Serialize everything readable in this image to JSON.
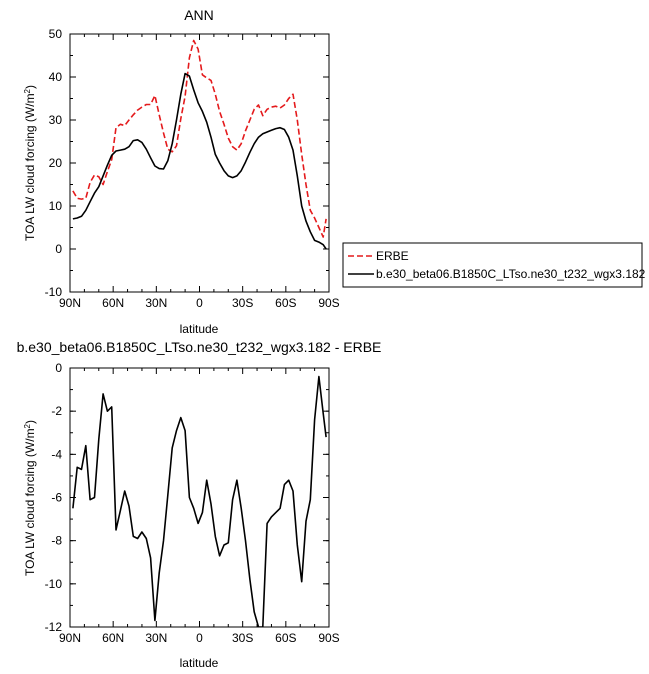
{
  "chart_data": [
    {
      "type": "line",
      "title": "ANN",
      "xlabel": "latitude",
      "ylabel": "TOA LW cloud forcing (W/m",
      "ylabel_sup": "2",
      "ylabel_close": ")",
      "xlim": [
        90,
        -90
      ],
      "ylim": [
        -10,
        50
      ],
      "x_ticks": [
        90,
        60,
        30,
        0,
        -30,
        -60,
        -90
      ],
      "x_tick_labels": [
        "90N",
        "60N",
        "30N",
        "0",
        "30S",
        "60S",
        "90S"
      ],
      "y_ticks": [
        -10,
        0,
        10,
        20,
        30,
        40,
        50
      ],
      "y_tick_labels": [
        "-10",
        "0",
        "10",
        "20",
        "30",
        "40",
        "50"
      ],
      "legend": "outside-right",
      "series": [
        {
          "name": "ERBE",
          "color": "#e41a1c",
          "dash": "dashed",
          "x": [
            88,
            85,
            82,
            79,
            76,
            73,
            70,
            67,
            64,
            61,
            58,
            55,
            52,
            49,
            46,
            43,
            40,
            37,
            34,
            31,
            28,
            25,
            22,
            19,
            16,
            13,
            10,
            7,
            4,
            1,
            -2,
            -5,
            -8,
            -11,
            -14,
            -17,
            -20,
            -23,
            -26,
            -29,
            -32,
            -35,
            -38,
            -41,
            -44,
            -47,
            -50,
            -53,
            -56,
            -59,
            -62,
            -65,
            -68,
            -71,
            -74,
            -77,
            -80,
            -83,
            -86,
            -88
          ],
          "values": [
            13.5,
            11.8,
            11.6,
            11.8,
            15.5,
            17.2,
            16.8,
            15.0,
            18.0,
            20.8,
            28.2,
            29.0,
            28.7,
            30.0,
            31.2,
            32.3,
            33.0,
            33.6,
            33.6,
            35.7,
            31.2,
            27.0,
            23.2,
            22.6,
            24.0,
            30.3,
            35.5,
            44.5,
            48.5,
            46.5,
            40.5,
            39.8,
            39.2,
            36.0,
            32.0,
            29.0,
            25.8,
            23.8,
            23.0,
            24.5,
            27.5,
            30.0,
            32.5,
            33.5,
            31.0,
            32.5,
            33.0,
            33.2,
            32.8,
            33.5,
            35.0,
            36.0,
            30.0,
            22.0,
            15.0,
            9.0,
            7.2,
            5.0,
            2.8,
            7.0
          ]
        },
        {
          "name": "b.e30_beta06.B1850C_LTso.ne30_t232_wgx3.182",
          "color": "#000000",
          "dash": "solid",
          "x": [
            88,
            85,
            82,
            79,
            76,
            73,
            70,
            67,
            64,
            61,
            58,
            55,
            52,
            49,
            46,
            43,
            40,
            37,
            34,
            31,
            28,
            25,
            22,
            19,
            16,
            13,
            10,
            7,
            4,
            1,
            -2,
            -5,
            -8,
            -11,
            -14,
            -17,
            -20,
            -23,
            -26,
            -29,
            -32,
            -35,
            -38,
            -41,
            -44,
            -47,
            -50,
            -53,
            -56,
            -59,
            -62,
            -65,
            -68,
            -71,
            -74,
            -77,
            -80,
            -83,
            -86,
            -88
          ],
          "values": [
            7.0,
            7.2,
            7.6,
            9.0,
            11.0,
            13.0,
            14.5,
            17.0,
            19.5,
            21.8,
            22.8,
            23.0,
            23.2,
            23.8,
            25.2,
            25.4,
            24.8,
            23.2,
            21.2,
            19.3,
            18.7,
            18.6,
            20.5,
            24.5,
            30.0,
            36.0,
            40.8,
            40.2,
            37.0,
            34.0,
            32.0,
            29.5,
            26.0,
            22.0,
            20.0,
            18.2,
            17.0,
            16.6,
            17.0,
            18.2,
            20.2,
            22.5,
            24.5,
            26.0,
            26.8,
            27.2,
            27.6,
            28.0,
            28.2,
            27.8,
            26.0,
            23.0,
            17.0,
            10.0,
            6.5,
            4.0,
            2.0,
            1.6,
            1.0,
            0.0
          ]
        }
      ]
    },
    {
      "type": "line",
      "title": "b.e30_beta06.B1850C_LTso.ne30_t232_wgx3.182 - ERBE",
      "xlabel": "latitude",
      "ylabel": "TOA LW cloud forcing (W/m",
      "ylabel_sup": "2",
      "ylabel_close": ")",
      "xlim": [
        90,
        -90
      ],
      "ylim": [
        -12,
        0
      ],
      "x_ticks": [
        90,
        60,
        30,
        0,
        -30,
        -60,
        -90
      ],
      "x_tick_labels": [
        "90N",
        "60N",
        "30N",
        "0",
        "30S",
        "60S",
        "90S"
      ],
      "y_ticks": [
        -12,
        -10,
        -8,
        -6,
        -4,
        -2,
        0
      ],
      "y_tick_labels": [
        "-12",
        "-10",
        "-8",
        "-6",
        "-4",
        "-2",
        "0"
      ],
      "series": [
        {
          "color": "#000000",
          "dash": "solid",
          "x": [
            88,
            85,
            82,
            79,
            76,
            73,
            70,
            67,
            64,
            61,
            58,
            55,
            52,
            49,
            46,
            43,
            40,
            37,
            34,
            31,
            28,
            25,
            22,
            19,
            16,
            13,
            10,
            7,
            4,
            1,
            -2,
            -5,
            -8,
            -11,
            -14,
            -17,
            -20,
            -23,
            -26,
            -29,
            -32,
            -35,
            -38,
            -41,
            -44,
            -47,
            -50,
            -53,
            -56,
            -59,
            -62,
            -65,
            -68,
            -71,
            -74,
            -77,
            -80,
            -83,
            -86,
            -88
          ],
          "values": [
            -6.5,
            -4.6,
            -4.7,
            -3.6,
            -6.1,
            -6.0,
            -3.3,
            -1.2,
            -2.0,
            -1.8,
            -7.5,
            -6.6,
            -5.7,
            -6.4,
            -7.8,
            -7.9,
            -7.6,
            -7.9,
            -8.8,
            -11.7,
            -9.5,
            -8.0,
            -5.9,
            -3.7,
            -2.9,
            -2.3,
            -2.9,
            -6.0,
            -6.5,
            -7.2,
            -6.7,
            -5.2,
            -6.3,
            -7.8,
            -8.7,
            -8.2,
            -8.1,
            -6.1,
            -5.2,
            -6.5,
            -8.0,
            -9.8,
            -11.3,
            -12.0,
            -12.0,
            -7.2,
            -6.9,
            -6.7,
            -6.5,
            -5.4,
            -5.2,
            -5.7,
            -8.2,
            -9.9,
            -7.1,
            -6.1,
            -2.4,
            -0.4,
            -2.1,
            -3.2
          ]
        }
      ]
    }
  ]
}
